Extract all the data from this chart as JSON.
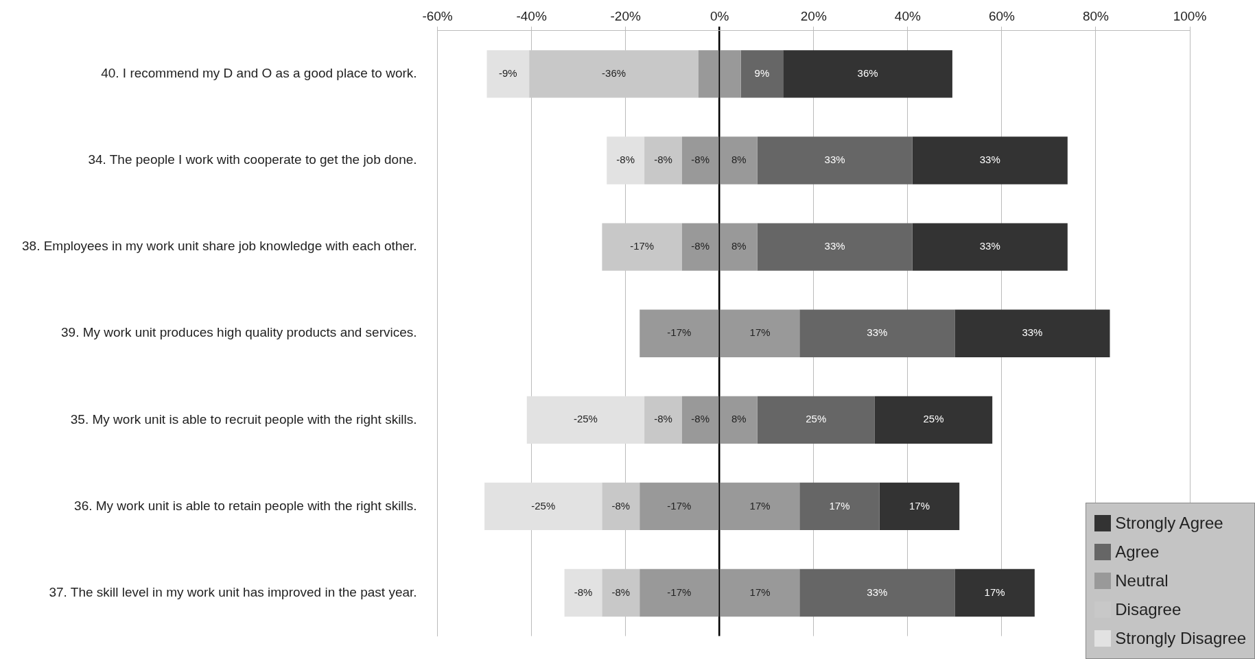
{
  "chart_data": {
    "type": "bar",
    "orientation": "horizontal",
    "stacked": true,
    "categories": [
      "40. I recommend my D and O as a good place to work.",
      "34. The people I work with cooperate to get the job done.",
      "38. Employees in my work unit share job knowledge with each other.",
      "39. My work unit produces high quality products and services.",
      "35. My work unit is able to recruit people with the right skills.",
      "36. My work unit is able to retain people with the right skills.",
      "37. The skill level in my work unit has improved in the past year."
    ],
    "series": [
      {
        "name": "Neutral",
        "color": "#999999",
        "values": [
          -4.5,
          -8,
          -8,
          -17,
          -8,
          -17,
          -17
        ],
        "value_labels": [
          null,
          "-8%",
          "-8%",
          "-17%",
          "-8%",
          "-17%",
          "-17%"
        ]
      },
      {
        "color": "#999999",
        "values": [
          4.5,
          8,
          8,
          17,
          8,
          17,
          17
        ],
        "value_labels": [
          null,
          "8%",
          "8%",
          "17%",
          "8%",
          "17%",
          "17%"
        ]
      },
      {
        "name": "Disagree",
        "color": "#c8c8c8",
        "values": [
          -36,
          -8,
          -17,
          null,
          -8,
          -8,
          -8
        ],
        "value_labels": [
          "-36%",
          "-8%",
          "-17%",
          null,
          "-8%",
          "-8%",
          "-8%"
        ]
      },
      {
        "name": "Agree",
        "color": "#666666",
        "values": [
          9,
          33,
          33,
          33,
          25,
          17,
          33
        ],
        "value_labels": [
          "9%",
          "33%",
          "33%",
          "33%",
          "25%",
          "17%",
          "33%"
        ]
      },
      {
        "name": "Strongly Disagree",
        "color": "#e2e2e2",
        "values": [
          -9,
          -8,
          null,
          null,
          -25,
          -25,
          -8
        ],
        "value_labels": [
          "-9%",
          "-8%",
          null,
          null,
          "-25%",
          "-25%",
          "-8%"
        ]
      },
      {
        "name": "Strongly Agree",
        "color": "#333333",
        "values": [
          36,
          33,
          33,
          33,
          25,
          17,
          17
        ],
        "value_labels": [
          "36%",
          "33%",
          "33%",
          "33%",
          "25%",
          "17%",
          "17%"
        ]
      }
    ],
    "xlim": [
      -60,
      100
    ],
    "xticks": [
      {
        "value": -60,
        "label": "-60%"
      },
      {
        "value": -40,
        "label": "-40%"
      },
      {
        "value": -20,
        "label": "-20%"
      },
      {
        "value": 0,
        "label": "0%"
      },
      {
        "value": 20,
        "label": "20%"
      },
      {
        "value": 40,
        "label": "40%"
      },
      {
        "value": 60,
        "label": "60%"
      },
      {
        "value": 80,
        "label": "80%"
      },
      {
        "value": 100,
        "label": "100%"
      }
    ],
    "grid": "x",
    "legend": "bottom right"
  }
}
